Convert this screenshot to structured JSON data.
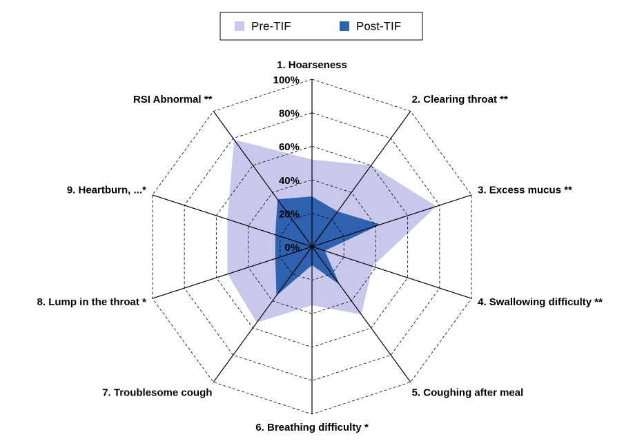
{
  "chart_data": {
    "type": "radar",
    "categories": [
      "1. Hoarseness",
      "2. Clearing throat **",
      "3. Excess mucus **",
      "4. Swallowing difficulty **",
      "5. Coughing after meal",
      "6. Breathing difficulty *",
      "7. Troublesome cough",
      "8. Lump in the throat *",
      "9. Heartburn, ...*",
      "RSI Abnormal **"
    ],
    "series": [
      {
        "name": "Pre-TIF",
        "color": "#c8c8ec",
        "values": [
          52,
          60,
          78,
          38,
          50,
          35,
          56,
          53,
          53,
          79
        ]
      },
      {
        "name": "Post-TIF",
        "color": "#2e62b0",
        "values": [
          30,
          26,
          43,
          8,
          28,
          11,
          36,
          23,
          23,
          35
        ]
      }
    ],
    "ylim": [
      0,
      100
    ],
    "yticks": [
      {
        "value": 0,
        "label": "0%"
      },
      {
        "value": 20,
        "label": "20%"
      },
      {
        "value": 40,
        "label": "40%"
      },
      {
        "value": 60,
        "label": "60%"
      },
      {
        "value": 80,
        "label": "80%"
      },
      {
        "value": 100,
        "label": "100%"
      }
    ],
    "grid": true,
    "legend": "top"
  }
}
